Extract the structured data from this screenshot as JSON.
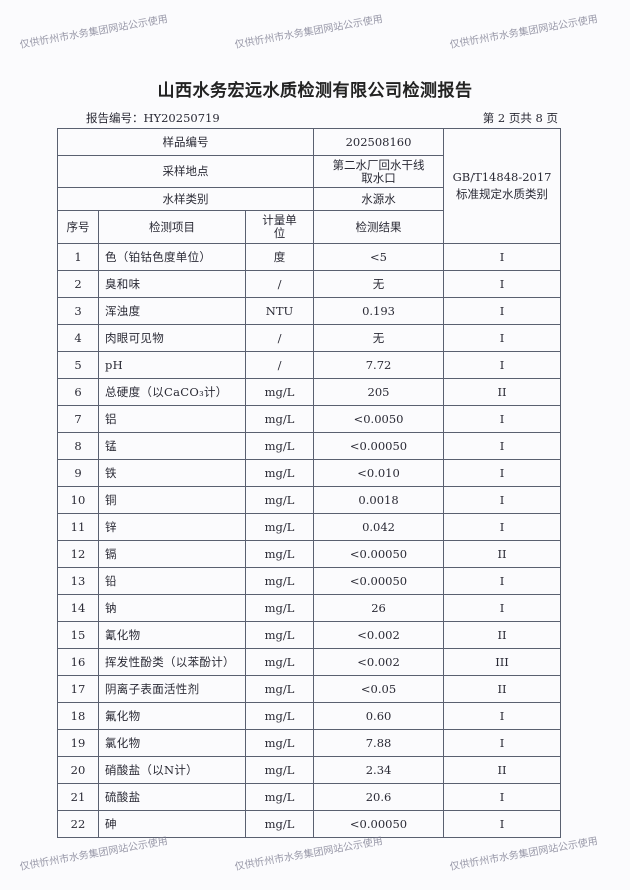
{
  "title": "山西水务宏远水质检测有限公司检测报告",
  "report_no": "报告编号：HY20250719",
  "page_no": "第 2 页共 8 页",
  "watermark": "仅供忻州市水务集团网站公示使用",
  "header": {
    "sample_no_label": "样品编号",
    "sample_no": "202508160",
    "site_label": "采样地点",
    "site": "第二水厂回水干线取水口",
    "type_label": "水样类别",
    "type": "水源水",
    "standard": "GB/T14848-2017 标准规定水质类别",
    "col_seq": "序号",
    "col_item": "检测项目",
    "col_unit": "计量单位",
    "col_result": "检测结果"
  },
  "rows": [
    {
      "seq": "1",
      "item": "色（铂钴色度单位）",
      "unit": "度",
      "result": "<5",
      "class": "I"
    },
    {
      "seq": "2",
      "item": "臭和味",
      "unit": "/",
      "result": "无",
      "class": "I"
    },
    {
      "seq": "3",
      "item": "浑浊度",
      "unit": "NTU",
      "result": "0.193",
      "class": "I"
    },
    {
      "seq": "4",
      "item": "肉眼可见物",
      "unit": "/",
      "result": "无",
      "class": "I"
    },
    {
      "seq": "5",
      "item": "pH",
      "unit": "/",
      "result": "7.72",
      "class": "I"
    },
    {
      "seq": "6",
      "item": "总硬度（以CaCO₃计）",
      "unit": "mg/L",
      "result": "205",
      "class": "II"
    },
    {
      "seq": "7",
      "item": "铝",
      "unit": "mg/L",
      "result": "<0.0050",
      "class": "I"
    },
    {
      "seq": "8",
      "item": "锰",
      "unit": "mg/L",
      "result": "<0.00050",
      "class": "I"
    },
    {
      "seq": "9",
      "item": "铁",
      "unit": "mg/L",
      "result": "<0.010",
      "class": "I"
    },
    {
      "seq": "10",
      "item": "铜",
      "unit": "mg/L",
      "result": "0.0018",
      "class": "I"
    },
    {
      "seq": "11",
      "item": "锌",
      "unit": "mg/L",
      "result": "0.042",
      "class": "I"
    },
    {
      "seq": "12",
      "item": "镉",
      "unit": "mg/L",
      "result": "<0.00050",
      "class": "II"
    },
    {
      "seq": "13",
      "item": "铅",
      "unit": "mg/L",
      "result": "<0.00050",
      "class": "I"
    },
    {
      "seq": "14",
      "item": "钠",
      "unit": "mg/L",
      "result": "26",
      "class": "I"
    },
    {
      "seq": "15",
      "item": "氰化物",
      "unit": "mg/L",
      "result": "<0.002",
      "class": "II"
    },
    {
      "seq": "16",
      "item": "挥发性酚类（以苯酚计）",
      "unit": "mg/L",
      "result": "<0.002",
      "class": "III"
    },
    {
      "seq": "17",
      "item": "阴离子表面活性剂",
      "unit": "mg/L",
      "result": "<0.05",
      "class": "II"
    },
    {
      "seq": "18",
      "item": "氟化物",
      "unit": "mg/L",
      "result": "0.60",
      "class": "I"
    },
    {
      "seq": "19",
      "item": "氯化物",
      "unit": "mg/L",
      "result": "7.88",
      "class": "I"
    },
    {
      "seq": "20",
      "item": "硝酸盐（以N计）",
      "unit": "mg/L",
      "result": "2.34",
      "class": "II"
    },
    {
      "seq": "21",
      "item": "硫酸盐",
      "unit": "mg/L",
      "result": "20.6",
      "class": "I"
    },
    {
      "seq": "22",
      "item": "砷",
      "unit": "mg/L",
      "result": "<0.00050",
      "class": "I"
    }
  ]
}
